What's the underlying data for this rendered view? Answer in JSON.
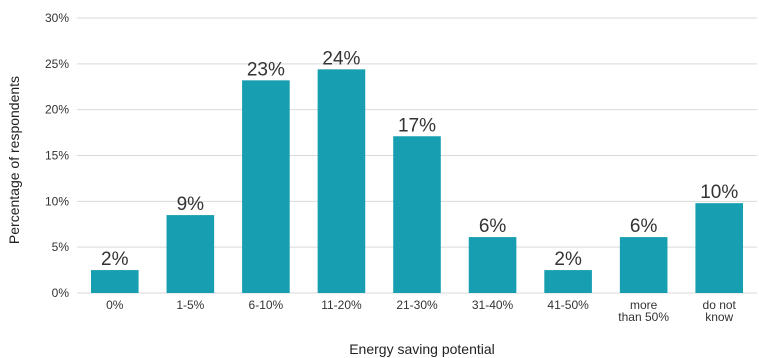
{
  "chart_data": {
    "type": "bar",
    "categories": [
      "0%",
      "1-5%",
      "6-10%",
      "11-20%",
      "21-30%",
      "31-40%",
      "41-50%",
      "more than 50%",
      "do not know"
    ],
    "category_lines": [
      [
        "0%"
      ],
      [
        "1-5%"
      ],
      [
        "6-10%"
      ],
      [
        "11-20%"
      ],
      [
        "21-30%"
      ],
      [
        "31-40%"
      ],
      [
        "41-50%"
      ],
      [
        "more",
        "than 50%"
      ],
      [
        "do not",
        "know"
      ]
    ],
    "values": [
      2.5,
      8.5,
      23.2,
      24.4,
      17.1,
      6.1,
      2.5,
      6.1,
      9.8
    ],
    "data_labels": [
      "2%",
      "9%",
      "23%",
      "24%",
      "17%",
      "6%",
      "2%",
      "6%",
      "10%"
    ],
    "title": "",
    "xlabel": "Energy saving potential",
    "ylabel": "Percentage of respondents",
    "ylim": [
      0,
      30
    ],
    "yticks": [
      0,
      5,
      10,
      15,
      20,
      25,
      30
    ],
    "ytick_labels": [
      "0%",
      "5%",
      "10%",
      "15%",
      "20%",
      "25%",
      "30%"
    ],
    "grid": true,
    "legend": "none",
    "bar_color": "#179fb1"
  }
}
